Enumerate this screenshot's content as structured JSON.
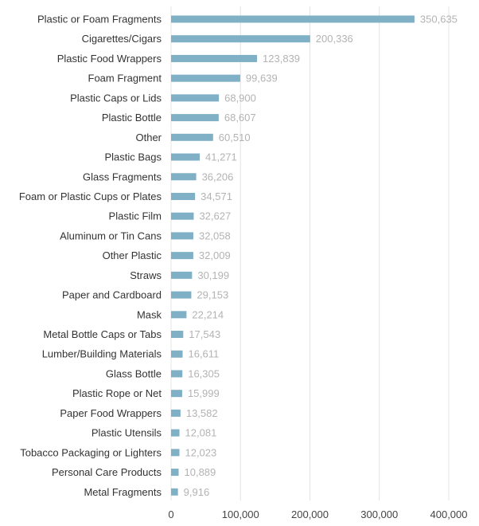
{
  "chart_data": {
    "type": "bar",
    "orientation": "horizontal",
    "categories": [
      "Plastic or Foam Fragments",
      "Cigarettes/Cigars",
      "Plastic Food Wrappers",
      "Foam Fragment",
      "Plastic Caps or Lids",
      "Plastic Bottle",
      "Other",
      "Plastic Bags",
      "Glass Fragments",
      "Foam or Plastic Cups or Plates",
      "Plastic Film",
      "Aluminum or Tin Cans",
      "Other Plastic",
      "Straws",
      "Paper and Cardboard",
      "Mask",
      "Metal Bottle Caps or Tabs",
      "Lumber/Building Materials",
      "Glass Bottle",
      "Plastic Rope or Net",
      "Paper Food Wrappers",
      "Plastic Utensils",
      "Tobacco Packaging or Lighters",
      "Personal Care Products",
      "Metal Fragments"
    ],
    "values": [
      350635,
      200336,
      123839,
      99639,
      68900,
      68607,
      60510,
      41271,
      36206,
      34571,
      32627,
      32058,
      32009,
      30199,
      29153,
      22214,
      17543,
      16611,
      16305,
      15999,
      13582,
      12081,
      12023,
      10889,
      9916
    ],
    "value_labels": [
      "350,635",
      "200,336",
      "123,839",
      "99,639",
      "68,900",
      "68,607",
      "60,510",
      "41,271",
      "36,206",
      "34,571",
      "32,627",
      "32,058",
      "32,009",
      "30,199",
      "29,153",
      "22,214",
      "17,543",
      "16,611",
      "16,305",
      "15,999",
      "13,582",
      "12,081",
      "12,023",
      "10,889",
      "9,916"
    ],
    "x_ticks": [
      0,
      100000,
      200000,
      300000,
      400000
    ],
    "x_tick_labels": [
      "0",
      "100,000",
      "200,000",
      "300,000",
      "400,000"
    ],
    "xlim": [
      0,
      400000
    ],
    "grid": "vertical",
    "bar_color": "#7fb0c6",
    "title": "",
    "xlabel": "",
    "ylabel": ""
  }
}
